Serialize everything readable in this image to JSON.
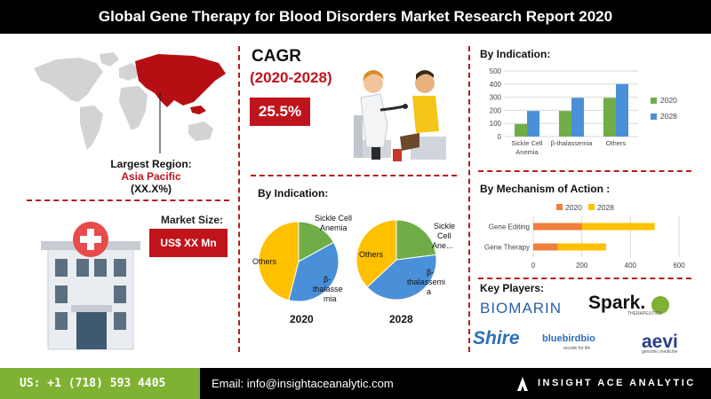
{
  "header": {
    "title": "Global Gene Therapy for Blood Disorders Market Research Report 2020"
  },
  "region": {
    "label": "Largest Region:",
    "name": "Asia Pacific",
    "value": "(XX.X%)"
  },
  "market_size": {
    "label": "Market Size:",
    "value": "US$ XX Mn"
  },
  "cagr": {
    "title": "CAGR",
    "period": "(2020-2028)",
    "value": "25.5%"
  },
  "pies": {
    "title": "By Indication:",
    "caption_2020": "2020",
    "caption_2028": "2028",
    "labels_2020": {
      "sickle": [
        "Sickle Cell",
        "Anemia"
      ],
      "beta": [
        "β-",
        "thalasse",
        "mia"
      ],
      "others": "Others"
    },
    "labels_2028": {
      "sickle": [
        "Sickle",
        "Cell",
        "Ane..."
      ],
      "beta": [
        "β-",
        "thalassemi",
        "a"
      ],
      "others": "Others"
    }
  },
  "colors": {
    "sickle": "#70ad47",
    "beta": "#4a90d9",
    "others": "#ffc000",
    "accent": "#c0141c",
    "bar2020": "#70ad47",
    "bar2028": "#4a90d9",
    "mech2020": "#f07f3c",
    "mech2028": "#ffc000",
    "footer_green": "#7fb132"
  },
  "chart_data": [
    {
      "type": "pie",
      "title": "2020",
      "categories": [
        "Sickle Cell Anemia",
        "β-thalassemia",
        "Others"
      ],
      "values": [
        17,
        37,
        46
      ]
    },
    {
      "type": "pie",
      "title": "2028",
      "categories": [
        "Sickle Cell Anemia",
        "β-thalassemia",
        "Others"
      ],
      "values": [
        23,
        40,
        37
      ]
    },
    {
      "type": "bar",
      "title": "By Indication:",
      "categories": [
        "Sickle Cell Anemia",
        "β-thalassemia",
        "Others"
      ],
      "category_lines": [
        [
          "Sickle Cell",
          "Anemia"
        ],
        [
          "β-thalassemia"
        ],
        [
          "Others"
        ]
      ],
      "series": [
        {
          "name": "2020",
          "values": [
            95,
            195,
            295
          ]
        },
        {
          "name": "2028",
          "values": [
            195,
            295,
            400
          ]
        }
      ],
      "ylim": [
        0,
        500
      ],
      "yticks": [
        0,
        100,
        200,
        300,
        400,
        500
      ],
      "grid": true,
      "legend": "right"
    },
    {
      "type": "bar",
      "orientation": "horizontal",
      "title": "By Mechanism of Action :",
      "categories": [
        "Gene Editing",
        "Gene Therapy"
      ],
      "series": [
        {
          "name": "2020",
          "values": [
            200,
            100
          ]
        },
        {
          "name": "2028",
          "values": [
            500,
            300
          ]
        }
      ],
      "xlim": [
        0,
        600
      ],
      "xticks": [
        0,
        200,
        400,
        600
      ],
      "grid": true,
      "legend": "top"
    }
  ],
  "key_players": {
    "title": "Key Players:",
    "logos": {
      "biomarin": "BIOMARIN",
      "spark": "Spark.",
      "spark_sub": "THERAPEUTICS",
      "shire": "Shire",
      "bluebird": "bluebirdbio",
      "bluebird_sub": "recode for life",
      "aevi": "aevi",
      "aevi_sub": "genomic medicine"
    }
  },
  "footer": {
    "phone": "US: +1 (718) 593 4405",
    "email": "Email: info@insightaceanalytic.com",
    "brand": "INSIGHT ACE ANALYTIC"
  }
}
